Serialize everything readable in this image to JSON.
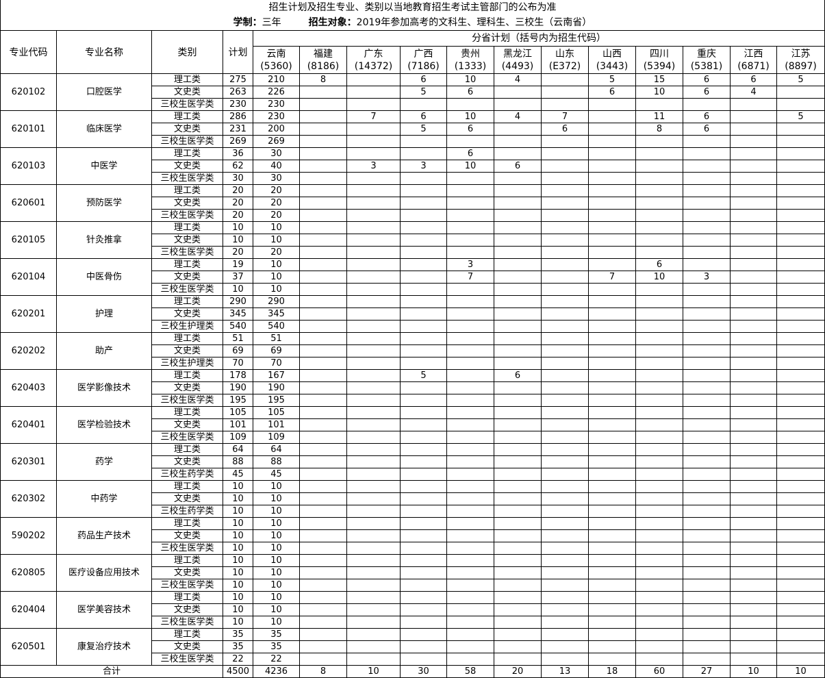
{
  "title": "招生计划及招生专业、类别以当地教育招生考试主管部门的公布为准",
  "subtitle": {
    "duration_label": "学制：",
    "duration_value": "三年",
    "target_label": "招生对象：",
    "target_value": "2019年参加高考的文科生、理科生、三校生（云南省）"
  },
  "headers": {
    "code": "专业代码",
    "name": "专业名称",
    "category": "类别",
    "plan": "计划",
    "province_plan": "分省计划（括号内为招生代码）",
    "provinces": [
      {
        "name": "云南",
        "code": "(5360)"
      },
      {
        "name": "福建",
        "code": "(8186)"
      },
      {
        "name": "广东",
        "code": "(14372)"
      },
      {
        "name": "广西",
        "code": "(7186)"
      },
      {
        "name": "贵州",
        "code": "(1333)"
      },
      {
        "name": "黑龙江",
        "code": "(4493)"
      },
      {
        "name": "山东",
        "code": "(E372)"
      },
      {
        "name": "山西",
        "code": "(3443)"
      },
      {
        "name": "四川",
        "code": "(5394)"
      },
      {
        "name": "重庆",
        "code": "(5381)"
      },
      {
        "name": "江西",
        "code": "(6871)"
      },
      {
        "name": "江苏",
        "code": "(8897)"
      }
    ]
  },
  "majors": [
    {
      "code": "620102",
      "name": "口腔医学",
      "rows": [
        [
          "理工类",
          "275",
          "210",
          "8",
          "",
          "6",
          "10",
          "4",
          "",
          "5",
          "15",
          "6",
          "6",
          "5"
        ],
        [
          "文史类",
          "263",
          "226",
          "",
          "",
          "5",
          "6",
          "",
          "",
          "6",
          "10",
          "6",
          "4",
          ""
        ],
        [
          "三校生医学类",
          "230",
          "230",
          "",
          "",
          "",
          "",
          "",
          "",
          "",
          "",
          "",
          "",
          ""
        ]
      ]
    },
    {
      "code": "620101",
      "name": "临床医学",
      "rows": [
        [
          "理工类",
          "286",
          "230",
          "",
          "7",
          "6",
          "10",
          "4",
          "7",
          "",
          "11",
          "6",
          "",
          "5"
        ],
        [
          "文史类",
          "231",
          "200",
          "",
          "",
          "5",
          "6",
          "",
          "6",
          "",
          "8",
          "6",
          "",
          ""
        ],
        [
          "三校生医学类",
          "269",
          "269",
          "",
          "",
          "",
          "",
          "",
          "",
          "",
          "",
          "",
          "",
          ""
        ]
      ]
    },
    {
      "code": "620103",
      "name": "中医学",
      "rows": [
        [
          "理工类",
          "36",
          "30",
          "",
          "",
          "",
          "6",
          "",
          "",
          "",
          "",
          "",
          "",
          ""
        ],
        [
          "文史类",
          "62",
          "40",
          "",
          "3",
          "3",
          "10",
          "6",
          "",
          "",
          "",
          "",
          "",
          ""
        ],
        [
          "三校生医学类",
          "30",
          "30",
          "",
          "",
          "",
          "",
          "",
          "",
          "",
          "",
          "",
          "",
          ""
        ]
      ]
    },
    {
      "code": "620601",
      "name": "预防医学",
      "rows": [
        [
          "理工类",
          "20",
          "20",
          "",
          "",
          "",
          "",
          "",
          "",
          "",
          "",
          "",
          "",
          ""
        ],
        [
          "文史类",
          "20",
          "20",
          "",
          "",
          "",
          "",
          "",
          "",
          "",
          "",
          "",
          "",
          ""
        ],
        [
          "三校生医学类",
          "20",
          "20",
          "",
          "",
          "",
          "",
          "",
          "",
          "",
          "",
          "",
          "",
          ""
        ]
      ]
    },
    {
      "code": "620105",
      "name": "针灸推拿",
      "rows": [
        [
          "理工类",
          "10",
          "10",
          "",
          "",
          "",
          "",
          "",
          "",
          "",
          "",
          "",
          "",
          ""
        ],
        [
          "文史类",
          "10",
          "10",
          "",
          "",
          "",
          "",
          "",
          "",
          "",
          "",
          "",
          "",
          ""
        ],
        [
          "三校生医学类",
          "20",
          "20",
          "",
          "",
          "",
          "",
          "",
          "",
          "",
          "",
          "",
          "",
          ""
        ]
      ]
    },
    {
      "code": "620104",
      "name": "中医骨伤",
      "rows": [
        [
          "理工类",
          "19",
          "10",
          "",
          "",
          "",
          "3",
          "",
          "",
          "",
          "6",
          "",
          "",
          ""
        ],
        [
          "文史类",
          "37",
          "10",
          "",
          "",
          "",
          "7",
          "",
          "",
          "7",
          "10",
          "3",
          "",
          ""
        ],
        [
          "三校生医学类",
          "10",
          "10",
          "",
          "",
          "",
          "",
          "",
          "",
          "",
          "",
          "",
          "",
          ""
        ]
      ]
    },
    {
      "code": "620201",
      "name": "护理",
      "rows": [
        [
          "理工类",
          "290",
          "290",
          "",
          "",
          "",
          "",
          "",
          "",
          "",
          "",
          "",
          "",
          ""
        ],
        [
          "文史类",
          "345",
          "345",
          "",
          "",
          "",
          "",
          "",
          "",
          "",
          "",
          "",
          "",
          ""
        ],
        [
          "三校生护理类",
          "540",
          "540",
          "",
          "",
          "",
          "",
          "",
          "",
          "",
          "",
          "",
          "",
          ""
        ]
      ]
    },
    {
      "code": "620202",
      "name": "助产",
      "rows": [
        [
          "理工类",
          "51",
          "51",
          "",
          "",
          "",
          "",
          "",
          "",
          "",
          "",
          "",
          "",
          ""
        ],
        [
          "文史类",
          "69",
          "69",
          "",
          "",
          "",
          "",
          "",
          "",
          "",
          "",
          "",
          "",
          ""
        ],
        [
          "三校生护理类",
          "70",
          "70",
          "",
          "",
          "",
          "",
          "",
          "",
          "",
          "",
          "",
          "",
          ""
        ]
      ]
    },
    {
      "code": "620403",
      "name": "医学影像技术",
      "rows": [
        [
          "理工类",
          "178",
          "167",
          "",
          "",
          "5",
          "",
          "6",
          "",
          "",
          "",
          "",
          "",
          ""
        ],
        [
          "文史类",
          "190",
          "190",
          "",
          "",
          "",
          "",
          "",
          "",
          "",
          "",
          "",
          "",
          ""
        ],
        [
          "三校生医学类",
          "195",
          "195",
          "",
          "",
          "",
          "",
          "",
          "",
          "",
          "",
          "",
          "",
          ""
        ]
      ]
    },
    {
      "code": "620401",
      "name": "医学检验技术",
      "rows": [
        [
          "理工类",
          "105",
          "105",
          "",
          "",
          "",
          "",
          "",
          "",
          "",
          "",
          "",
          "",
          ""
        ],
        [
          "文史类",
          "101",
          "101",
          "",
          "",
          "",
          "",
          "",
          "",
          "",
          "",
          "",
          "",
          ""
        ],
        [
          "三校生医学类",
          "109",
          "109",
          "",
          "",
          "",
          "",
          "",
          "",
          "",
          "",
          "",
          "",
          ""
        ]
      ]
    },
    {
      "code": "620301",
      "name": "药学",
      "rows": [
        [
          "理工类",
          "64",
          "64",
          "",
          "",
          "",
          "",
          "",
          "",
          "",
          "",
          "",
          "",
          ""
        ],
        [
          "文史类",
          "88",
          "88",
          "",
          "",
          "",
          "",
          "",
          "",
          "",
          "",
          "",
          "",
          ""
        ],
        [
          "三校生药学类",
          "45",
          "45",
          "",
          "",
          "",
          "",
          "",
          "",
          "",
          "",
          "",
          "",
          ""
        ]
      ]
    },
    {
      "code": "620302",
      "name": "中药学",
      "rows": [
        [
          "理工类",
          "10",
          "10",
          "",
          "",
          "",
          "",
          "",
          "",
          "",
          "",
          "",
          "",
          ""
        ],
        [
          "文史类",
          "10",
          "10",
          "",
          "",
          "",
          "",
          "",
          "",
          "",
          "",
          "",
          "",
          ""
        ],
        [
          "三校生药学类",
          "10",
          "10",
          "",
          "",
          "",
          "",
          "",
          "",
          "",
          "",
          "",
          "",
          ""
        ]
      ]
    },
    {
      "code": "590202",
      "name": "药品生产技术",
      "rows": [
        [
          "理工类",
          "10",
          "10",
          "",
          "",
          "",
          "",
          "",
          "",
          "",
          "",
          "",
          "",
          ""
        ],
        [
          "文史类",
          "10",
          "10",
          "",
          "",
          "",
          "",
          "",
          "",
          "",
          "",
          "",
          "",
          ""
        ],
        [
          "三校生医学类",
          "10",
          "10",
          "",
          "",
          "",
          "",
          "",
          "",
          "",
          "",
          "",
          "",
          ""
        ]
      ]
    },
    {
      "code": "620805",
      "name": "医疗设备应用技术",
      "rows": [
        [
          "理工类",
          "10",
          "10",
          "",
          "",
          "",
          "",
          "",
          "",
          "",
          "",
          "",
          "",
          ""
        ],
        [
          "文史类",
          "10",
          "10",
          "",
          "",
          "",
          "",
          "",
          "",
          "",
          "",
          "",
          "",
          ""
        ],
        [
          "三校生医学类",
          "10",
          "10",
          "",
          "",
          "",
          "",
          "",
          "",
          "",
          "",
          "",
          "",
          ""
        ]
      ]
    },
    {
      "code": "620404",
      "name": "医学美容技术",
      "rows": [
        [
          "理工类",
          "10",
          "10",
          "",
          "",
          "",
          "",
          "",
          "",
          "",
          "",
          "",
          "",
          ""
        ],
        [
          "文史类",
          "10",
          "10",
          "",
          "",
          "",
          "",
          "",
          "",
          "",
          "",
          "",
          "",
          ""
        ],
        [
          "三校生医学类",
          "10",
          "10",
          "",
          "",
          "",
          "",
          "",
          "",
          "",
          "",
          "",
          "",
          ""
        ]
      ]
    },
    {
      "code": "620501",
      "name": "康复治疗技术",
      "rows": [
        [
          "理工类",
          "35",
          "35",
          "",
          "",
          "",
          "",
          "",
          "",
          "",
          "",
          "",
          "",
          ""
        ],
        [
          "文史类",
          "35",
          "35",
          "",
          "",
          "",
          "",
          "",
          "",
          "",
          "",
          "",
          "",
          ""
        ],
        [
          "三校生医学类",
          "22",
          "22",
          "",
          "",
          "",
          "",
          "",
          "",
          "",
          "",
          "",
          "",
          ""
        ]
      ]
    }
  ],
  "total": {
    "label": "合计",
    "values": [
      "4500",
      "4236",
      "8",
      "10",
      "30",
      "58",
      "20",
      "13",
      "18",
      "60",
      "27",
      "10",
      "10"
    ]
  }
}
